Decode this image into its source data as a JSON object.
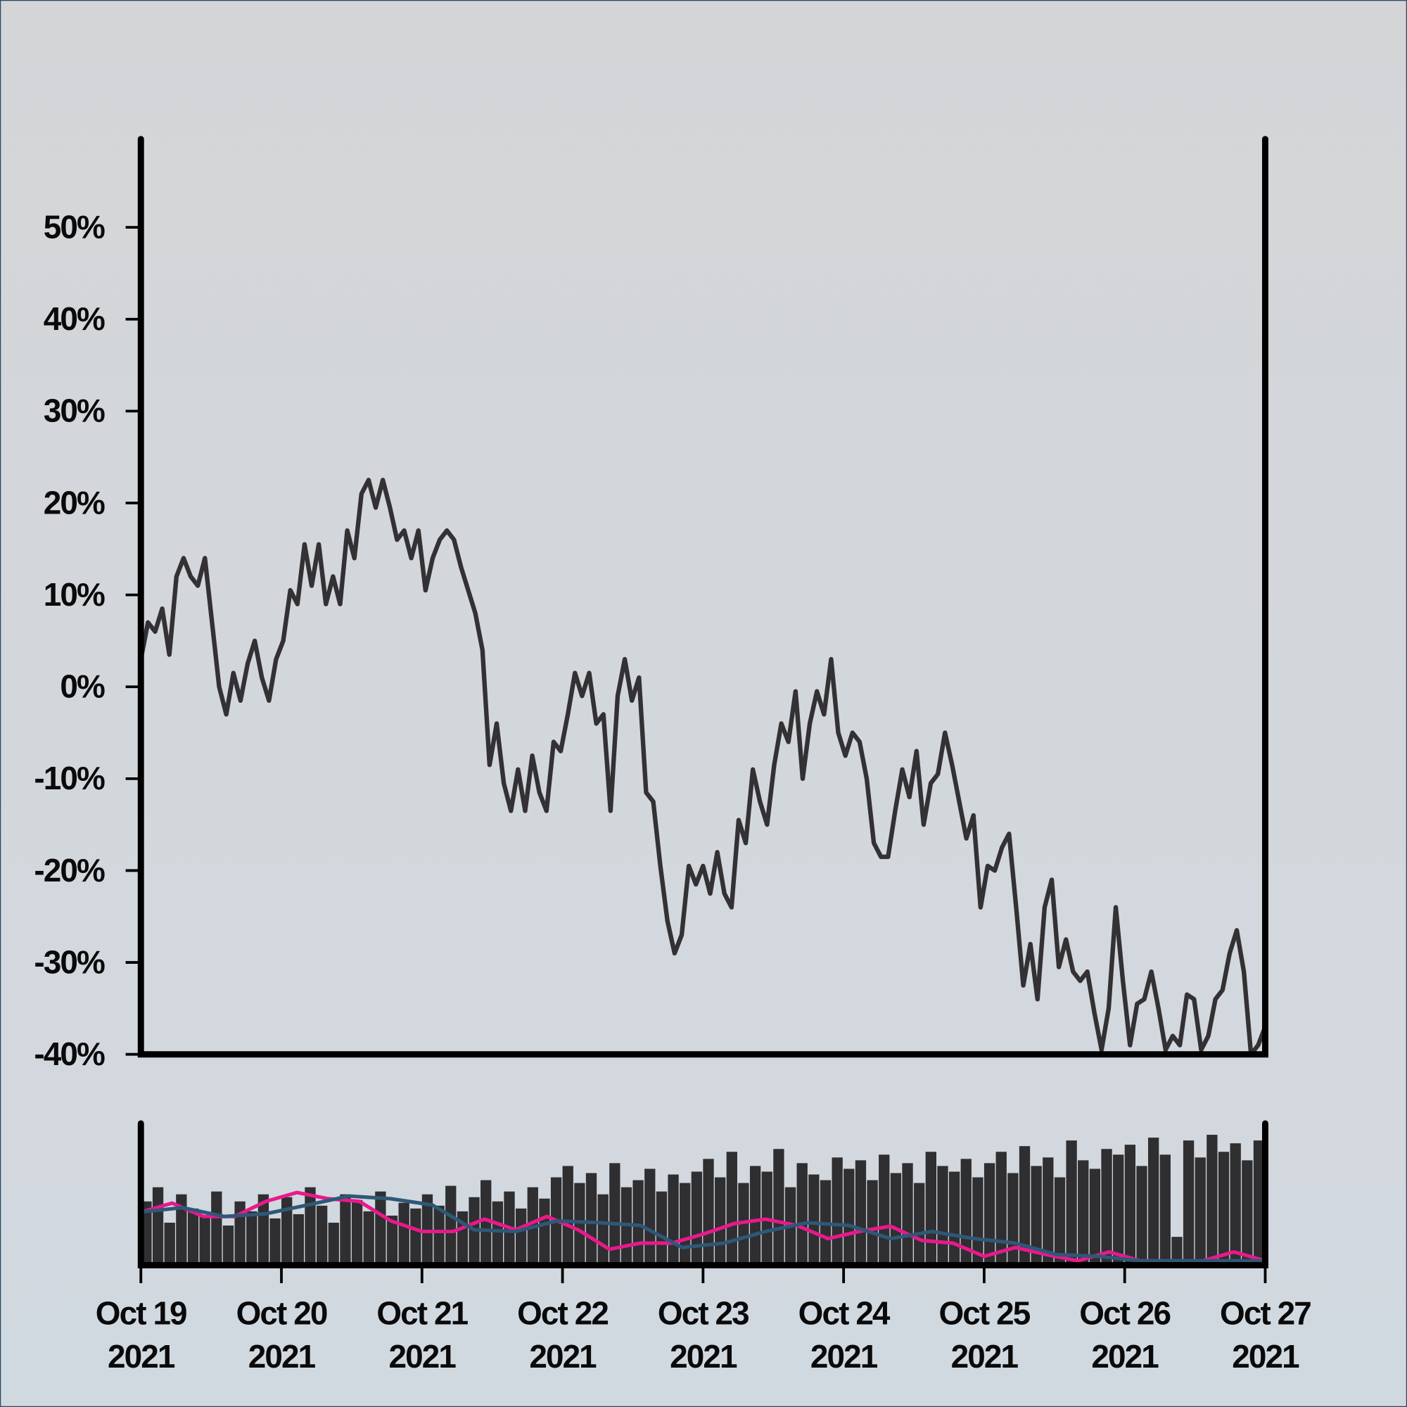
{
  "chart_data": [
    {
      "type": "line",
      "xlim": [
        "2021-10-19",
        "2021-10-27"
      ],
      "ylim": [
        -40,
        59.6
      ],
      "yticks": [
        {
          "value": -40,
          "label": "-40%"
        },
        {
          "value": -30,
          "label": "-30%"
        },
        {
          "value": -20,
          "label": "-20%"
        },
        {
          "value": -10,
          "label": "-10%"
        },
        {
          "value": 0,
          "label": "0%"
        },
        {
          "value": 10,
          "label": "10%"
        },
        {
          "value": 20,
          "label": "20%"
        },
        {
          "value": 30,
          "label": "30%"
        },
        {
          "value": 40,
          "label": "40%"
        },
        {
          "value": 50,
          "label": "50%"
        }
      ],
      "series": [
        {
          "color": "#333133",
          "values": [
            3,
            7,
            6,
            8.5,
            3.5,
            12,
            14,
            12,
            11,
            14,
            7,
            0,
            -3,
            1.5,
            -1.5,
            2.5,
            5,
            1,
            -1.5,
            3,
            5,
            10.5,
            9,
            15.5,
            11,
            15.5,
            9,
            12,
            9,
            17,
            14,
            21,
            22.5,
            19.5,
            22.5,
            19.5,
            16,
            17,
            14,
            17,
            10.5,
            14,
            16,
            17,
            16,
            13,
            10.5,
            8,
            4,
            -8.5,
            -4,
            -10.5,
            -13.5,
            -9,
            -13.5,
            -7.5,
            -11.5,
            -13.5,
            -6,
            -7,
            -3,
            1.5,
            -1,
            1.5,
            -4,
            -3,
            -13.5,
            -1,
            3,
            -1.5,
            1,
            -11.5,
            -12.5,
            -19.5,
            -25.5,
            -29,
            -27,
            -19.5,
            -21.5,
            -19.5,
            -22.5,
            -18,
            -22.5,
            -24,
            -14.5,
            -17,
            -9,
            -12.5,
            -15,
            -8.5,
            -4,
            -6,
            -0.5,
            -10,
            -4,
            -0.5,
            -3,
            3,
            -5,
            -7.5,
            -5,
            -6,
            -10,
            -17,
            -18.5,
            -18.5,
            -13.5,
            -9,
            -12,
            -7,
            -15,
            -10.5,
            -9.5,
            -5,
            -8.5,
            -12.5,
            -16.5,
            -14,
            -24,
            -19.5,
            -20,
            -17.5,
            -16,
            -24,
            -32.5,
            -28,
            -34,
            -24,
            -21,
            -30.5,
            -27.5,
            -31,
            -32,
            -31,
            -35.5,
            -39.5,
            -35,
            -24,
            -32,
            -39,
            -34.5,
            -34,
            -31,
            -35,
            -39.5,
            -38,
            -39,
            -33.5,
            -34,
            -39.5,
            -38,
            -34,
            -33,
            -29,
            -26.5,
            -31,
            -40,
            -39,
            -37
          ]
        }
      ]
    },
    {
      "type": "bar",
      "xlim": [
        "2021-10-19",
        "2021-10-27"
      ],
      "ylim": [
        0,
        100
      ],
      "xticks": [
        {
          "value": "2021-10-19",
          "label": [
            "Oct 19",
            "2021"
          ]
        },
        {
          "value": "2021-10-20",
          "label": [
            "Oct 20",
            "2021"
          ]
        },
        {
          "value": "2021-10-21",
          "label": [
            "Oct 21",
            "2021"
          ]
        },
        {
          "value": "2021-10-22",
          "label": [
            "Oct 22",
            "2021"
          ]
        },
        {
          "value": "2021-10-23",
          "label": [
            "Oct 23",
            "2021"
          ]
        },
        {
          "value": "2021-10-24",
          "label": [
            "Oct 24",
            "2021"
          ]
        },
        {
          "value": "2021-10-25",
          "label": [
            "Oct 25",
            "2021"
          ]
        },
        {
          "value": "2021-10-26",
          "label": [
            "Oct 26",
            "2021"
          ]
        },
        {
          "value": "2021-10-27",
          "label": [
            "Oct 27",
            "2021"
          ]
        }
      ],
      "color": "#2f2e30",
      "values": [
        45,
        55,
        30,
        50,
        40,
        35,
        52,
        28,
        45,
        38,
        50,
        33,
        48,
        36,
        55,
        42,
        30,
        50,
        46,
        38,
        52,
        35,
        44,
        40,
        50,
        42,
        56,
        38,
        48,
        60,
        45,
        52,
        40,
        55,
        47,
        62,
        70,
        58,
        65,
        50,
        72,
        55,
        60,
        68,
        52,
        64,
        58,
        66,
        75,
        62,
        80,
        58,
        70,
        66,
        82,
        55,
        72,
        64,
        60,
        76,
        68,
        74,
        60,
        78,
        65,
        72,
        58,
        80,
        70,
        66,
        75,
        62,
        72,
        80,
        65,
        84,
        70,
        76,
        62,
        88,
        74,
        68,
        82,
        78,
        85,
        70,
        90,
        78,
        20,
        88,
        76,
        92,
        80,
        86,
        74,
        88
      ],
      "series": [
        {
          "color": "#e8198b",
          "values": [
            37.5,
            43.8,
            34.4,
            34.4,
            45,
            51.3,
            46.9,
            45,
            31.3,
            23.8,
            23.8,
            32.5,
            25,
            34.4,
            25,
            11.3,
            15.6,
            15.6,
            21.9,
            29.4,
            32.5,
            28.1,
            18.8,
            23.8,
            27.5,
            17.5,
            15.6,
            6.3,
            12.5,
            7.5,
            3.1,
            9.4,
            3.1,
            3.1,
            3.1,
            9.4,
            3.1
          ]
        },
        {
          "color": "#2e5877",
          "values": [
            37.5,
            40.6,
            34.4,
            36.3,
            42.5,
            48.8,
            46.9,
            42.5,
            25,
            23.8,
            31.3,
            30,
            28.1,
            12.5,
            15.6,
            23.8,
            30,
            28.1,
            18.8,
            23.8,
            18.8,
            15.6,
            7.5,
            6.3,
            3.1,
            3.1,
            3.1,
            3.1
          ]
        }
      ]
    }
  ]
}
